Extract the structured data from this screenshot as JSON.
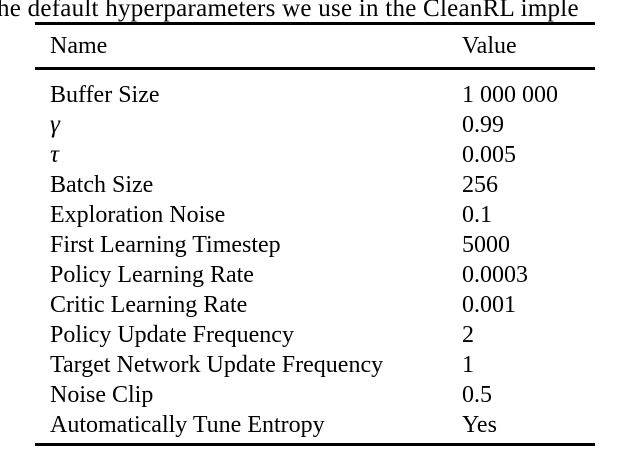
{
  "caption": {
    "text": "he default hyperparameters we use in the CleanRL imple"
  },
  "table": {
    "columns": [
      "Name",
      "Value"
    ],
    "rows": [
      {
        "name": "Buffer Size",
        "value": "1 000 000"
      },
      {
        "name": "γ",
        "value": "0.99"
      },
      {
        "name": "τ",
        "value": "0.005"
      },
      {
        "name": "Batch Size",
        "value": "256"
      },
      {
        "name": "Exploration Noise",
        "value": "0.1"
      },
      {
        "name": "First Learning Timestep",
        "value": "5000"
      },
      {
        "name": "Policy Learning Rate",
        "value": "0.0003"
      },
      {
        "name": "Critic Learning Rate",
        "value": "0.001"
      },
      {
        "name": "Policy Update Frequency",
        "value": "2"
      },
      {
        "name": "Target Network Update Frequency",
        "value": "1"
      },
      {
        "name": "Noise Clip",
        "value": "0.5"
      },
      {
        "name": "Automatically Tune Entropy",
        "value": "Yes"
      }
    ]
  }
}
